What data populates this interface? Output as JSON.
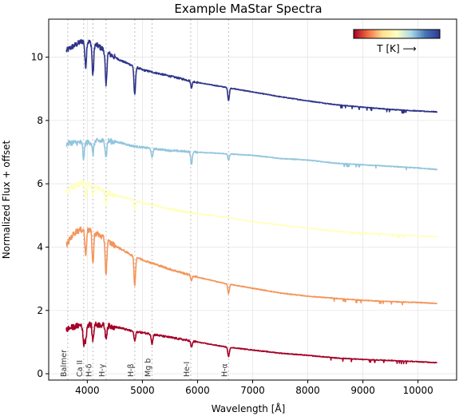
{
  "chart_data": {
    "type": "line",
    "title": "Example MaStar Spectra",
    "xlabel": "Wavelength [Å]",
    "ylabel": "Normalized Flux + offset",
    "xlim": [
      3300,
      10700
    ],
    "ylim": [
      -0.2,
      11.2
    ],
    "xticks": [
      4000,
      5000,
      6000,
      7000,
      8000,
      9000,
      10000
    ],
    "yticks": [
      0,
      2,
      4,
      6,
      8,
      10
    ],
    "grid": true,
    "colorbar": {
      "label": "T [K] ⟶",
      "colors": [
        "#a50026",
        "#f46d43",
        "#fee090",
        "#ffffbf",
        "#abd9e9",
        "#4575b4",
        "#313695"
      ],
      "placement": "top-right"
    },
    "spectral_lines": [
      {
        "label": "Balmer",
        "wavelength": 3646
      },
      {
        "label": "Ca II",
        "wavelength": 3934
      },
      {
        "label": "H-δ",
        "wavelength": 4102
      },
      {
        "label": "H-γ",
        "wavelength": 4340
      },
      {
        "label": "H-β",
        "wavelength": 4861
      },
      {
        "label": "Mg b",
        "wavelength": 5175
      },
      {
        "label": "He-I",
        "wavelength": 5876
      },
      {
        "label": "H-α",
        "wavelength": 6563
      }
    ],
    "series": [
      {
        "color": "#2e3489",
        "x": [
          3620,
          3700,
          3800,
          3900,
          4000,
          4200,
          4400,
          4600,
          4800,
          5000,
          5500,
          6000,
          6500,
          7000,
          7500,
          8000,
          8500,
          9000,
          9500,
          10000,
          10350
        ],
        "y": [
          10.2,
          10.3,
          10.4,
          10.5,
          10.5,
          10.35,
          10.1,
          9.9,
          9.75,
          9.6,
          9.4,
          9.2,
          9.05,
          8.9,
          8.75,
          8.62,
          8.5,
          8.42,
          8.35,
          8.3,
          8.27
        ],
        "absorption": [
          {
            "wavelength": 3970,
            "depth": 0.8
          },
          {
            "wavelength": 4102,
            "depth": 1.0
          },
          {
            "wavelength": 4340,
            "depth": 1.1
          },
          {
            "wavelength": 4861,
            "depth": 0.9
          },
          {
            "wavelength": 5890,
            "depth": 0.2
          },
          {
            "wavelength": 6563,
            "depth": 0.4
          }
        ]
      },
      {
        "color": "#92c5de",
        "x": [
          3620,
          3700,
          3800,
          3900,
          4000,
          4200,
          4400,
          4600,
          4800,
          5000,
          5500,
          6000,
          6500,
          7000,
          7500,
          8000,
          8500,
          9000,
          9500,
          10000,
          10350
        ],
        "y": [
          7.25,
          7.3,
          7.3,
          7.3,
          7.3,
          7.35,
          7.35,
          7.3,
          7.2,
          7.15,
          7.05,
          7.0,
          6.95,
          6.9,
          6.8,
          6.75,
          6.65,
          6.6,
          6.55,
          6.5,
          6.45
        ],
        "absorption": [
          {
            "wavelength": 3934,
            "depth": 0.5
          },
          {
            "wavelength": 4102,
            "depth": 0.4
          },
          {
            "wavelength": 4340,
            "depth": 0.5
          },
          {
            "wavelength": 5175,
            "depth": 0.3
          },
          {
            "wavelength": 5890,
            "depth": 0.4
          },
          {
            "wavelength": 6563,
            "depth": 0.2
          }
        ]
      },
      {
        "color": "#ffffbf",
        "x": [
          3620,
          3700,
          3800,
          3900,
          4000,
          4200,
          4400,
          4600,
          4800,
          5000,
          5500,
          6000,
          6500,
          7000,
          7500,
          8000,
          8500,
          9000,
          9500,
          10000,
          10350
        ],
        "y": [
          5.7,
          5.85,
          5.95,
          6.0,
          6.0,
          5.85,
          5.7,
          5.6,
          5.5,
          5.4,
          5.2,
          5.05,
          4.95,
          4.8,
          4.7,
          4.6,
          4.5,
          4.45,
          4.4,
          4.35,
          4.33
        ],
        "absorption": [
          {
            "wavelength": 3970,
            "depth": 0.4
          },
          {
            "wavelength": 4102,
            "depth": 0.3
          },
          {
            "wavelength": 4340,
            "depth": 0.4
          },
          {
            "wavelength": 4861,
            "depth": 0.3
          }
        ]
      },
      {
        "color": "#f4955a",
        "x": [
          3620,
          3700,
          3800,
          3900,
          4000,
          4200,
          4400,
          4600,
          4800,
          5000,
          5500,
          6000,
          6500,
          7000,
          7500,
          8000,
          8500,
          9000,
          9500,
          10000,
          10350
        ],
        "y": [
          4.05,
          4.3,
          4.5,
          4.55,
          4.55,
          4.4,
          4.15,
          3.95,
          3.75,
          3.6,
          3.3,
          3.05,
          2.85,
          2.7,
          2.55,
          2.45,
          2.38,
          2.32,
          2.28,
          2.25,
          2.22
        ],
        "absorption": [
          {
            "wavelength": 3970,
            "depth": 0.8
          },
          {
            "wavelength": 4102,
            "depth": 1.0
          },
          {
            "wavelength": 4340,
            "depth": 1.1
          },
          {
            "wavelength": 4861,
            "depth": 0.9
          },
          {
            "wavelength": 5890,
            "depth": 0.15
          },
          {
            "wavelength": 6563,
            "depth": 0.3
          }
        ]
      },
      {
        "color": "#a50026",
        "x": [
          3620,
          3700,
          3800,
          3900,
          4000,
          4200,
          4400,
          4600,
          4800,
          5000,
          5500,
          6000,
          6500,
          7000,
          7500,
          8000,
          8500,
          9000,
          9500,
          10000,
          10350
        ],
        "y": [
          1.4,
          1.45,
          1.5,
          1.55,
          1.55,
          1.55,
          1.5,
          1.45,
          1.35,
          1.3,
          1.15,
          1.0,
          0.85,
          0.75,
          0.65,
          0.58,
          0.5,
          0.45,
          0.42,
          0.38,
          0.35
        ],
        "absorption": [
          {
            "wavelength": 3934,
            "depth": 0.6
          },
          {
            "wavelength": 3970,
            "depth": 0.5
          },
          {
            "wavelength": 4102,
            "depth": 0.5
          },
          {
            "wavelength": 4340,
            "depth": 0.4
          },
          {
            "wavelength": 4861,
            "depth": 0.3
          },
          {
            "wavelength": 5175,
            "depth": 0.3
          },
          {
            "wavelength": 5890,
            "depth": 0.2
          },
          {
            "wavelength": 6563,
            "depth": 0.3
          }
        ]
      }
    ]
  }
}
